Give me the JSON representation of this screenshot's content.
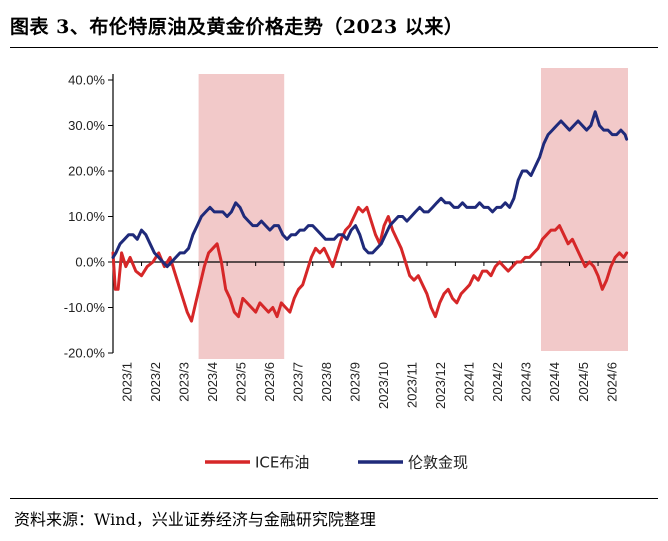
{
  "title": "图表 3、布伦特原油及黄金价格走势（2023 以来）",
  "source": "资料来源：Wind，兴业证券经济与金融研究院整理",
  "chart_data": {
    "type": "line",
    "title": "图表 3、布伦特原油及黄金价格走势（2023 以来）",
    "xlabel": "",
    "ylabel": "",
    "x_tick_labels": [
      "2023/1",
      "2023/2",
      "2023/3",
      "2023/4",
      "2023/5",
      "2023/6",
      "2023/7",
      "2023/8",
      "2023/9",
      "2023/10",
      "2023/11",
      "2023/12",
      "2024/1",
      "2024/2",
      "2024/3",
      "2024/4",
      "2024/5",
      "2024/6"
    ],
    "y_tick_labels": [
      "40.0%",
      "30.0%",
      "20.0%",
      "10.0%",
      "0.0%",
      "-10.0%",
      "-20.0%"
    ],
    "ylim": [
      -20,
      40
    ],
    "xlim_months": [
      0,
      18.05
    ],
    "grid": false,
    "legend_position": "bottom-center",
    "shaded_periods": [
      {
        "start": "2023/4",
        "end": "2023/7",
        "color": "#f2c9c9"
      },
      {
        "start": "2024/4",
        "end": "2024/7",
        "color": "#f2c9c9"
      }
    ],
    "series": [
      {
        "name": "ICE布油",
        "color": "#d62728",
        "values": [
          [
            0,
            2
          ],
          [
            0.08,
            -6
          ],
          [
            0.18,
            -6
          ],
          [
            0.3,
            2
          ],
          [
            0.45,
            -1
          ],
          [
            0.6,
            1
          ],
          [
            0.8,
            -2
          ],
          [
            1.0,
            -3
          ],
          [
            1.2,
            -1
          ],
          [
            1.4,
            0
          ],
          [
            1.6,
            2
          ],
          [
            1.8,
            -1
          ],
          [
            2.0,
            1
          ],
          [
            2.15,
            -2
          ],
          [
            2.3,
            -5
          ],
          [
            2.45,
            -8
          ],
          [
            2.6,
            -11
          ],
          [
            2.75,
            -13
          ],
          [
            2.9,
            -9
          ],
          [
            3.05,
            -5
          ],
          [
            3.2,
            -1
          ],
          [
            3.35,
            2
          ],
          [
            3.5,
            3
          ],
          [
            3.65,
            4
          ],
          [
            3.8,
            0
          ],
          [
            3.95,
            -6
          ],
          [
            4.1,
            -8
          ],
          [
            4.25,
            -11
          ],
          [
            4.4,
            -12
          ],
          [
            4.55,
            -8
          ],
          [
            4.7,
            -9
          ],
          [
            4.85,
            -10
          ],
          [
            5.0,
            -11
          ],
          [
            5.15,
            -9
          ],
          [
            5.3,
            -10
          ],
          [
            5.45,
            -11
          ],
          [
            5.6,
            -10
          ],
          [
            5.75,
            -12
          ],
          [
            5.9,
            -9
          ],
          [
            6.05,
            -10
          ],
          [
            6.2,
            -11
          ],
          [
            6.35,
            -8
          ],
          [
            6.5,
            -6
          ],
          [
            6.65,
            -5
          ],
          [
            6.8,
            -2
          ],
          [
            6.95,
            1
          ],
          [
            7.1,
            3
          ],
          [
            7.25,
            2
          ],
          [
            7.4,
            3
          ],
          [
            7.55,
            1
          ],
          [
            7.7,
            -1
          ],
          [
            7.85,
            2
          ],
          [
            8.0,
            5
          ],
          [
            8.15,
            7
          ],
          [
            8.3,
            8
          ],
          [
            8.45,
            10
          ],
          [
            8.6,
            12
          ],
          [
            8.75,
            11
          ],
          [
            8.9,
            12
          ],
          [
            9.05,
            9
          ],
          [
            9.2,
            6
          ],
          [
            9.35,
            4
          ],
          [
            9.5,
            8
          ],
          [
            9.65,
            10
          ],
          [
            9.8,
            7
          ],
          [
            9.95,
            5
          ],
          [
            10.1,
            3
          ],
          [
            10.25,
            0
          ],
          [
            10.4,
            -3
          ],
          [
            10.55,
            -4
          ],
          [
            10.7,
            -3
          ],
          [
            10.85,
            -5
          ],
          [
            11.0,
            -7
          ],
          [
            11.15,
            -10
          ],
          [
            11.3,
            -12
          ],
          [
            11.45,
            -9
          ],
          [
            11.6,
            -7
          ],
          [
            11.75,
            -6
          ],
          [
            11.9,
            -8
          ],
          [
            12.05,
            -9
          ],
          [
            12.2,
            -7
          ],
          [
            12.35,
            -6
          ],
          [
            12.5,
            -5
          ],
          [
            12.65,
            -3
          ],
          [
            12.8,
            -4
          ],
          [
            12.95,
            -2
          ],
          [
            13.1,
            -2
          ],
          [
            13.25,
            -3
          ],
          [
            13.4,
            -1
          ],
          [
            13.55,
            0
          ],
          [
            13.7,
            -1
          ],
          [
            13.85,
            -2
          ],
          [
            14.0,
            -1
          ],
          [
            14.15,
            0
          ],
          [
            14.3,
            0
          ],
          [
            14.45,
            1
          ],
          [
            14.6,
            1
          ],
          [
            14.75,
            2
          ],
          [
            14.9,
            3
          ],
          [
            15.05,
            5
          ],
          [
            15.2,
            6
          ],
          [
            15.35,
            7
          ],
          [
            15.5,
            7
          ],
          [
            15.65,
            8
          ],
          [
            15.8,
            6
          ],
          [
            15.95,
            4
          ],
          [
            16.1,
            5
          ],
          [
            16.25,
            3
          ],
          [
            16.4,
            1
          ],
          [
            16.55,
            -1
          ],
          [
            16.7,
            0
          ],
          [
            16.85,
            -1
          ],
          [
            17.0,
            -3
          ],
          [
            17.15,
            -6
          ],
          [
            17.3,
            -4
          ],
          [
            17.45,
            -1
          ],
          [
            17.6,
            1
          ],
          [
            17.75,
            2
          ],
          [
            17.9,
            1
          ],
          [
            18.0,
            2
          ]
        ]
      },
      {
        "name": "伦敦金现",
        "color": "#1f2a7a",
        "values": [
          [
            0,
            1
          ],
          [
            0.1,
            2
          ],
          [
            0.25,
            4
          ],
          [
            0.4,
            5
          ],
          [
            0.55,
            6
          ],
          [
            0.7,
            6
          ],
          [
            0.85,
            5
          ],
          [
            1.0,
            7
          ],
          [
            1.15,
            6
          ],
          [
            1.3,
            4
          ],
          [
            1.45,
            2
          ],
          [
            1.6,
            1
          ],
          [
            1.75,
            0
          ],
          [
            1.9,
            -1
          ],
          [
            2.05,
            0
          ],
          [
            2.2,
            1
          ],
          [
            2.35,
            2
          ],
          [
            2.5,
            2
          ],
          [
            2.65,
            3
          ],
          [
            2.8,
            6
          ],
          [
            2.95,
            8
          ],
          [
            3.1,
            10
          ],
          [
            3.25,
            11
          ],
          [
            3.4,
            12
          ],
          [
            3.55,
            11
          ],
          [
            3.7,
            11
          ],
          [
            3.85,
            11
          ],
          [
            4.0,
            10
          ],
          [
            4.15,
            11
          ],
          [
            4.3,
            13
          ],
          [
            4.45,
            12
          ],
          [
            4.6,
            10
          ],
          [
            4.75,
            9
          ],
          [
            4.9,
            8
          ],
          [
            5.05,
            8
          ],
          [
            5.2,
            9
          ],
          [
            5.35,
            8
          ],
          [
            5.5,
            7
          ],
          [
            5.65,
            8
          ],
          [
            5.8,
            8
          ],
          [
            5.95,
            6
          ],
          [
            6.1,
            5
          ],
          [
            6.25,
            6
          ],
          [
            6.4,
            6
          ],
          [
            6.55,
            7
          ],
          [
            6.7,
            7
          ],
          [
            6.85,
            8
          ],
          [
            7.0,
            8
          ],
          [
            7.15,
            7
          ],
          [
            7.3,
            6
          ],
          [
            7.45,
            5
          ],
          [
            7.6,
            5
          ],
          [
            7.75,
            5
          ],
          [
            7.9,
            6
          ],
          [
            8.05,
            6
          ],
          [
            8.2,
            5
          ],
          [
            8.35,
            7
          ],
          [
            8.5,
            8
          ],
          [
            8.65,
            6
          ],
          [
            8.8,
            3
          ],
          [
            8.95,
            2
          ],
          [
            9.1,
            2
          ],
          [
            9.25,
            3
          ],
          [
            9.4,
            4
          ],
          [
            9.55,
            6
          ],
          [
            9.7,
            8
          ],
          [
            9.85,
            9
          ],
          [
            10.0,
            10
          ],
          [
            10.15,
            10
          ],
          [
            10.3,
            9
          ],
          [
            10.45,
            10
          ],
          [
            10.6,
            11
          ],
          [
            10.75,
            12
          ],
          [
            10.9,
            11
          ],
          [
            11.05,
            11
          ],
          [
            11.2,
            12
          ],
          [
            11.35,
            13
          ],
          [
            11.5,
            14
          ],
          [
            11.65,
            13
          ],
          [
            11.8,
            13
          ],
          [
            11.95,
            12
          ],
          [
            12.1,
            12
          ],
          [
            12.25,
            13
          ],
          [
            12.4,
            12
          ],
          [
            12.55,
            12
          ],
          [
            12.7,
            12
          ],
          [
            12.85,
            13
          ],
          [
            13.0,
            12
          ],
          [
            13.15,
            12
          ],
          [
            13.3,
            11
          ],
          [
            13.45,
            12
          ],
          [
            13.6,
            12
          ],
          [
            13.75,
            13
          ],
          [
            13.9,
            12
          ],
          [
            14.05,
            14
          ],
          [
            14.2,
            18
          ],
          [
            14.35,
            20
          ],
          [
            14.5,
            20
          ],
          [
            14.65,
            19
          ],
          [
            14.8,
            21
          ],
          [
            14.95,
            23
          ],
          [
            15.1,
            26
          ],
          [
            15.25,
            28
          ],
          [
            15.4,
            29
          ],
          [
            15.55,
            30
          ],
          [
            15.7,
            31
          ],
          [
            15.85,
            30
          ],
          [
            16.0,
            29
          ],
          [
            16.15,
            30
          ],
          [
            16.3,
            31
          ],
          [
            16.45,
            30
          ],
          [
            16.6,
            29
          ],
          [
            16.75,
            30
          ],
          [
            16.9,
            33
          ],
          [
            17.05,
            30
          ],
          [
            17.2,
            29
          ],
          [
            17.35,
            29
          ],
          [
            17.5,
            28
          ],
          [
            17.65,
            28
          ],
          [
            17.8,
            29
          ],
          [
            17.95,
            28
          ],
          [
            18.0,
            27
          ]
        ]
      }
    ]
  }
}
